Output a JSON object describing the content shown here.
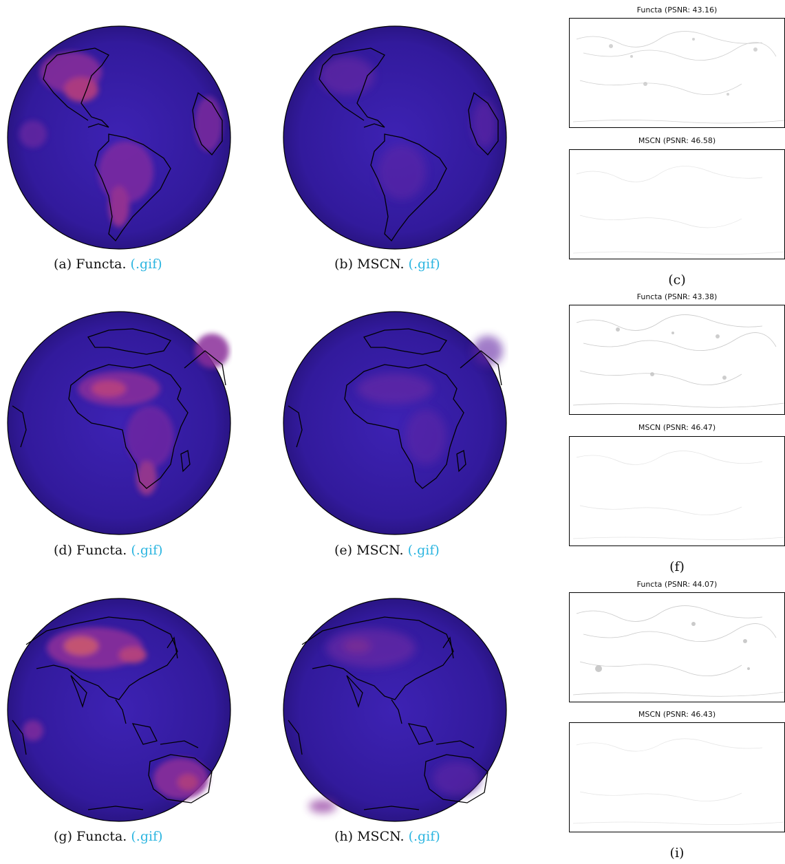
{
  "panels": [
    {
      "label": "(a) Functa.",
      "link": "(.gif)"
    },
    {
      "label": "(b) MSCN.",
      "link": "(.gif)"
    },
    {
      "label": "(d) Functa.",
      "link": "(.gif)"
    },
    {
      "label": "(e) MSCN.",
      "link": "(.gif)"
    },
    {
      "label": "(g) Functa.",
      "link": "(.gif)"
    },
    {
      "label": "(h) MSCN.",
      "link": "(.gif)"
    }
  ],
  "error_maps": [
    {
      "caption": "(c)",
      "functa_title": "Functa (PSNR: 43.16)",
      "mscn_title": "MSCN (PSNR: 46.58)"
    },
    {
      "caption": "(f)",
      "functa_title": "Functa (PSNR: 43.38)",
      "mscn_title": "MSCN (PSNR: 46.47)"
    },
    {
      "caption": "(i)",
      "functa_title": "Functa (PSNR: 44.07)",
      "mscn_title": "MSCN (PSNR: 46.43)"
    }
  ],
  "colors": {
    "globe_base": "#3a1da8",
    "globe_hot": "#e85a4f",
    "globe_warm": "#b8327a",
    "coastline": "#000000",
    "link": "#2bb5e0",
    "error_map_bg": "#ffffff",
    "error_map_marks": "#9a9a9a"
  }
}
